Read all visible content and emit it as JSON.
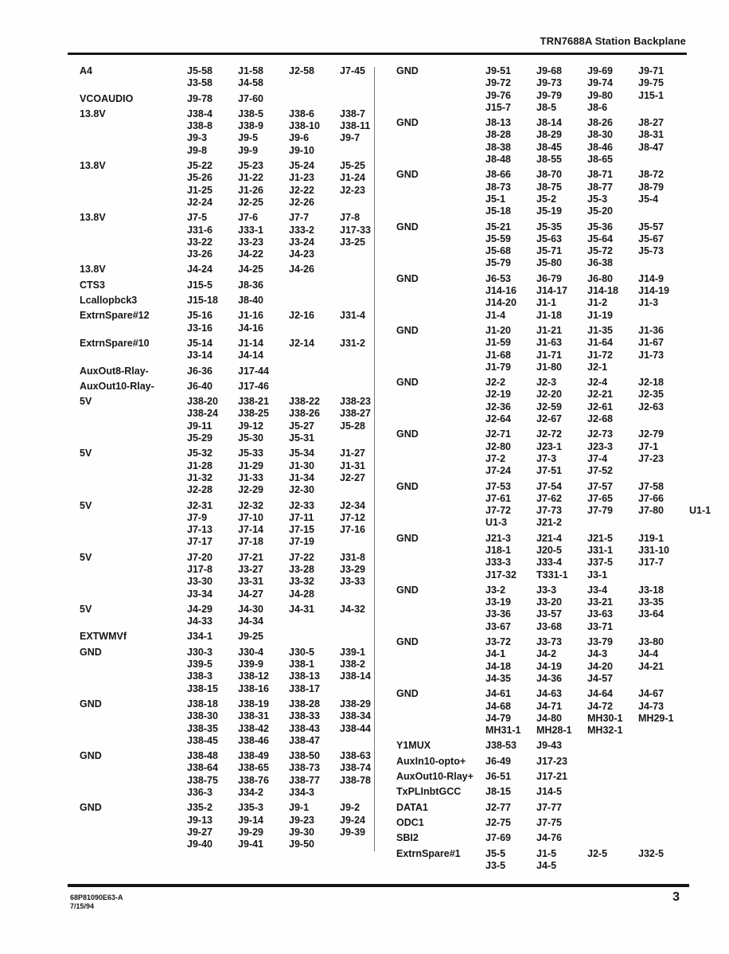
{
  "page": {
    "header_title": "TRN7688A Station Backplane",
    "footer": {
      "doc_number": "68P81090E63-A",
      "date": "7/15/94",
      "page_number": "3"
    }
  },
  "columns": {
    "left": {
      "rows": [
        {
          "signal": "A4",
          "lines": [
            [
              "J5-58",
              "J1-58",
              "J2-58",
              "J7-45"
            ],
            [
              "J3-58",
              "J4-58"
            ]
          ]
        },
        {
          "signal": "VCOAUDIO",
          "lines": [
            [
              "J9-78",
              "J7-60"
            ]
          ]
        },
        {
          "signal": "13.8V",
          "lines": [
            [
              "J38-4",
              "J38-5",
              "J38-6",
              "J38-7"
            ],
            [
              "J38-8",
              "J38-9",
              "J38-10",
              "J38-11"
            ],
            [
              "J9-3",
              "J9-5",
              "J9-6",
              "J9-7"
            ],
            [
              "J9-8",
              "J9-9",
              "J9-10"
            ]
          ]
        },
        {
          "signal": "13.8V",
          "lines": [
            [
              "J5-22",
              "J5-23",
              "J5-24",
              "J5-25"
            ],
            [
              "J5-26",
              "J1-22",
              "J1-23",
              "J1-24"
            ],
            [
              "J1-25",
              "J1-26",
              "J2-22",
              "J2-23"
            ],
            [
              "J2-24",
              "J2-25",
              "J2-26"
            ]
          ]
        },
        {
          "signal": "13.8V",
          "lines": [
            [
              "J7-5",
              "J7-6",
              "J7-7",
              "J7-8"
            ],
            [
              "J31-6",
              "J33-1",
              "J33-2",
              "J17-33"
            ],
            [
              "J3-22",
              "J3-23",
              "J3-24",
              "J3-25"
            ],
            [
              "J3-26",
              "J4-22",
              "J4-23"
            ]
          ]
        },
        {
          "signal": "13.8V",
          "lines": [
            [
              "J4-24",
              "J4-25",
              "J4-26"
            ]
          ]
        },
        {
          "signal": "CTS3",
          "lines": [
            [
              "J15-5",
              "J8-36"
            ]
          ]
        },
        {
          "signal": "Lcallopbck3",
          "lines": [
            [
              "J15-18",
              "J8-40"
            ]
          ]
        },
        {
          "signal": "ExtrnSpare#12",
          "lines": [
            [
              "J5-16",
              "J1-16",
              "J2-16",
              "J31-4"
            ],
            [
              "J3-16",
              "J4-16"
            ]
          ]
        },
        {
          "signal": "ExtrnSpare#10",
          "lines": [
            [
              "J5-14",
              "J1-14",
              "J2-14",
              "J31-2"
            ],
            [
              "J3-14",
              "J4-14"
            ]
          ]
        },
        {
          "signal": "AuxOut8-Rlay-",
          "lines": [
            [
              "J6-36",
              "J17-44"
            ]
          ]
        },
        {
          "signal": "AuxOut10-Rlay-",
          "lines": [
            [
              "J6-40",
              "J17-46"
            ]
          ]
        },
        {
          "signal": "5V",
          "lines": [
            [
              "J38-20",
              "J38-21",
              "J38-22",
              "J38-23"
            ],
            [
              "J38-24",
              "J38-25",
              "J38-26",
              "J38-27"
            ],
            [
              "J9-11",
              "J9-12",
              "J5-27",
              "J5-28"
            ],
            [
              "J5-29",
              "J5-30",
              "J5-31"
            ]
          ]
        },
        {
          "signal": "5V",
          "lines": [
            [
              "J5-32",
              "J5-33",
              "J5-34",
              "J1-27"
            ],
            [
              "J1-28",
              "J1-29",
              "J1-30",
              "J1-31"
            ],
            [
              "J1-32",
              "J1-33",
              "J1-34",
              "J2-27"
            ],
            [
              "J2-28",
              "J2-29",
              "J2-30"
            ]
          ]
        },
        {
          "signal": "5V",
          "lines": [
            [
              "J2-31",
              "J2-32",
              "J2-33",
              "J2-34"
            ],
            [
              "J7-9",
              "J7-10",
              "J7-11",
              "J7-12"
            ],
            [
              "J7-13",
              "J7-14",
              "J7-15",
              "J7-16"
            ],
            [
              "J7-17",
              "J7-18",
              "J7-19"
            ]
          ]
        },
        {
          "signal": "5V",
          "lines": [
            [
              "J7-20",
              "J7-21",
              "J7-22",
              "J31-8"
            ],
            [
              "J17-8",
              "J3-27",
              "J3-28",
              "J3-29"
            ],
            [
              "J3-30",
              "J3-31",
              "J3-32",
              "J3-33"
            ],
            [
              "J3-34",
              "J4-27",
              "J4-28"
            ]
          ]
        },
        {
          "signal": "5V",
          "lines": [
            [
              "J4-29",
              "J4-30",
              "J4-31",
              "J4-32"
            ],
            [
              "J4-33",
              "J4-34"
            ]
          ]
        },
        {
          "signal": "EXTWMVf",
          "lines": [
            [
              "J34-1",
              "J9-25"
            ]
          ]
        },
        {
          "signal": "GND",
          "lines": [
            [
              "J30-3",
              "J30-4",
              "J30-5",
              "J39-1"
            ],
            [
              "J39-5",
              "J39-9",
              "J38-1",
              "J38-2"
            ],
            [
              "J38-3",
              "J38-12",
              "J38-13",
              "J38-14"
            ],
            [
              "J38-15",
              "J38-16",
              "J38-17"
            ]
          ]
        },
        {
          "signal": "GND",
          "lines": [
            [
              "J38-18",
              "J38-19",
              "J38-28",
              "J38-29"
            ],
            [
              "J38-30",
              "J38-31",
              "J38-33",
              "J38-34"
            ],
            [
              "J38-35",
              "J38-42",
              "J38-43",
              "J38-44"
            ],
            [
              "J38-45",
              "J38-46",
              "J38-47"
            ]
          ]
        },
        {
          "signal": "GND",
          "lines": [
            [
              "J38-48",
              "J38-49",
              "J38-50",
              "J38-63"
            ],
            [
              "J38-64",
              "J38-65",
              "J38-73",
              "J38-74"
            ],
            [
              "J38-75",
              "J38-76",
              "J38-77",
              "J38-78"
            ],
            [
              "J36-3",
              "J34-2",
              "J34-3"
            ]
          ]
        },
        {
          "signal": "GND",
          "lines": [
            [
              "J35-2",
              "J35-3",
              "J9-1",
              "J9-2"
            ],
            [
              "J9-13",
              "J9-14",
              "J9-23",
              "J9-24"
            ],
            [
              "J9-27",
              "J9-29",
              "J9-30",
              "J9-39"
            ],
            [
              "J9-40",
              "J9-41",
              "J9-50"
            ]
          ]
        }
      ]
    },
    "right": {
      "rows": [
        {
          "signal": "GND",
          "lines": [
            [
              "J9-51",
              "J9-68",
              "J9-69",
              "J9-71"
            ],
            [
              "J9-72",
              "J9-73",
              "J9-74",
              "J9-75"
            ],
            [
              "J9-76",
              "J9-79",
              "J9-80",
              "J15-1"
            ],
            [
              "J15-7",
              "J8-5",
              "J8-6"
            ]
          ]
        },
        {
          "signal": "GND",
          "lines": [
            [
              "J8-13",
              "J8-14",
              "J8-26",
              "J8-27"
            ],
            [
              "J8-28",
              "J8-29",
              "J8-30",
              "J8-31"
            ],
            [
              "J8-38",
              "J8-45",
              "J8-46",
              "J8-47"
            ],
            [
              "J8-48",
              "J8-55",
              "J8-65"
            ]
          ]
        },
        {
          "signal": "GND",
          "lines": [
            [
              "J8-66",
              "J8-70",
              "J8-71",
              "J8-72"
            ],
            [
              "J8-73",
              "J8-75",
              "J8-77",
              "J8-79"
            ],
            [
              "J5-1",
              "J5-2",
              "J5-3",
              "J5-4"
            ],
            [
              "J5-18",
              "J5-19",
              "J5-20"
            ]
          ]
        },
        {
          "signal": "GND",
          "lines": [
            [
              "J5-21",
              "J5-35",
              "J5-36",
              "J5-57"
            ],
            [
              "J5-59",
              "J5-63",
              "J5-64",
              "J5-67"
            ],
            [
              "J5-68",
              "J5-71",
              "J5-72",
              "J5-73"
            ],
            [
              "J5-79",
              "J5-80",
              "J6-38"
            ]
          ]
        },
        {
          "signal": "GND",
          "lines": [
            [
              "J6-53",
              "J6-79",
              "J6-80",
              "J14-9"
            ],
            [
              "J14-16",
              "J14-17",
              "J14-18",
              "J14-19"
            ],
            [
              "J14-20",
              "J1-1",
              "J1-2",
              "J1-3"
            ],
            [
              "J1-4",
              "J1-18",
              "J1-19"
            ]
          ]
        },
        {
          "signal": "GND",
          "lines": [
            [
              "J1-20",
              "J1-21",
              "J1-35",
              "J1-36"
            ],
            [
              "J1-59",
              "J1-63",
              "J1-64",
              "J1-67"
            ],
            [
              "J1-68",
              "J1-71",
              "J1-72",
              "J1-73"
            ],
            [
              "J1-79",
              "J1-80",
              "J2-1"
            ]
          ]
        },
        {
          "signal": "GND",
          "lines": [
            [
              "J2-2",
              "J2-3",
              "J2-4",
              "J2-18"
            ],
            [
              "J2-19",
              "J2-20",
              "J2-21",
              "J2-35"
            ],
            [
              "J2-36",
              "J2-59",
              "J2-61",
              "J2-63"
            ],
            [
              "J2-64",
              "J2-67",
              "J2-68"
            ]
          ]
        },
        {
          "signal": "GND",
          "lines": [
            [
              "J2-71",
              "J2-72",
              "J2-73",
              "J2-79"
            ],
            [
              "J2-80",
              "J23-1",
              "J23-3",
              "J7-1"
            ],
            [
              "J7-2",
              "J7-3",
              "J7-4",
              "J7-23"
            ],
            [
              "J7-24",
              "J7-51",
              "J7-52"
            ]
          ]
        },
        {
          "signal": "GND",
          "lines": [
            [
              "J7-53",
              "J7-54",
              "J7-57",
              "J7-58"
            ],
            [
              "J7-61",
              "J7-62",
              "J7-65",
              "J7-66"
            ],
            [
              "J7-72",
              "J7-73",
              "J7-79",
              "J7-80",
              "U1-1"
            ],
            [
              "U1-3",
              "J21-2"
            ]
          ]
        },
        {
          "signal": "GND",
          "lines": [
            [
              "J21-3",
              "J21-4",
              "J21-5",
              "J19-1"
            ],
            [
              "J18-1",
              "J20-5",
              "J31-1",
              "J31-10"
            ],
            [
              "J33-3",
              "J33-4",
              "J37-5",
              "J17-7"
            ],
            [
              "J17-32",
              "T331-1",
              "J3-1"
            ]
          ]
        },
        {
          "signal": "GND",
          "lines": [
            [
              "J3-2",
              "J3-3",
              "J3-4",
              "J3-18"
            ],
            [
              "J3-19",
              "J3-20",
              "J3-21",
              "J3-35"
            ],
            [
              "J3-36",
              "J3-57",
              "J3-63",
              "J3-64"
            ],
            [
              "J3-67",
              "J3-68",
              "J3-71"
            ]
          ]
        },
        {
          "signal": "GND",
          "lines": [
            [
              "J3-72",
              "J3-73",
              "J3-79",
              "J3-80"
            ],
            [
              "J4-1",
              "J4-2",
              "J4-3",
              "J4-4"
            ],
            [
              "J4-18",
              "J4-19",
              "J4-20",
              "J4-21"
            ],
            [
              "J4-35",
              "J4-36",
              "J4-57"
            ]
          ]
        },
        {
          "signal": "GND",
          "lines": [
            [
              "J4-61",
              "J4-63",
              "J4-64",
              "J4-67"
            ],
            [
              "J4-68",
              "J4-71",
              "J4-72",
              "J4-73"
            ],
            [
              "J4-79",
              "J4-80",
              "MH30-1",
              "MH29-1"
            ],
            [
              "MH31-1",
              "MH28-1",
              "MH32-1"
            ]
          ]
        },
        {
          "signal": "Y1MUX",
          "lines": [
            [
              "J38-53",
              "J9-43"
            ]
          ]
        },
        {
          "signal": "AuxIn10-opto+",
          "lines": [
            [
              "J6-49",
              "J17-23"
            ]
          ]
        },
        {
          "signal": "AuxOut10-Rlay+",
          "lines": [
            [
              "J6-51",
              "J17-21"
            ]
          ]
        },
        {
          "signal": "TxPLInbtGCC",
          "lines": [
            [
              "J8-15",
              "J14-5"
            ]
          ]
        },
        {
          "signal": "DATA1",
          "lines": [
            [
              "J2-77",
              "J7-77"
            ]
          ]
        },
        {
          "signal": "ODC1",
          "lines": [
            [
              "J2-75",
              "J7-75"
            ]
          ]
        },
        {
          "signal": "SBI2",
          "lines": [
            [
              "J7-69",
              "J4-76"
            ]
          ]
        },
        {
          "signal": "ExtrnSpare#1",
          "lines": [
            [
              "J5-5",
              "J1-5",
              "J2-5",
              "J32-5"
            ],
            [
              "J3-5",
              "J4-5"
            ]
          ]
        }
      ]
    }
  }
}
